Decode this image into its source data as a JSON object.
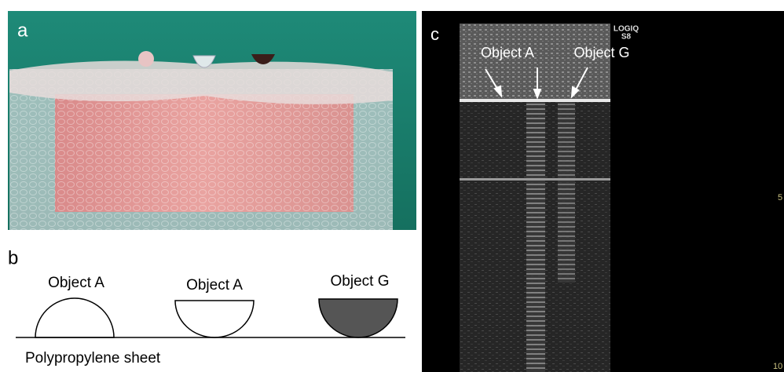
{
  "panel_a": {
    "label": "a"
  },
  "panel_b": {
    "label": "b",
    "objects": [
      "Object A",
      "Object A",
      "Object G"
    ],
    "sheet_label": "Polypropylene sheet"
  },
  "panel_c": {
    "label": "c",
    "object_labels": [
      "Object A",
      "Object G"
    ],
    "device": "LOGIQ",
    "model": "S8",
    "depth_marks": [
      "5",
      "10"
    ]
  }
}
